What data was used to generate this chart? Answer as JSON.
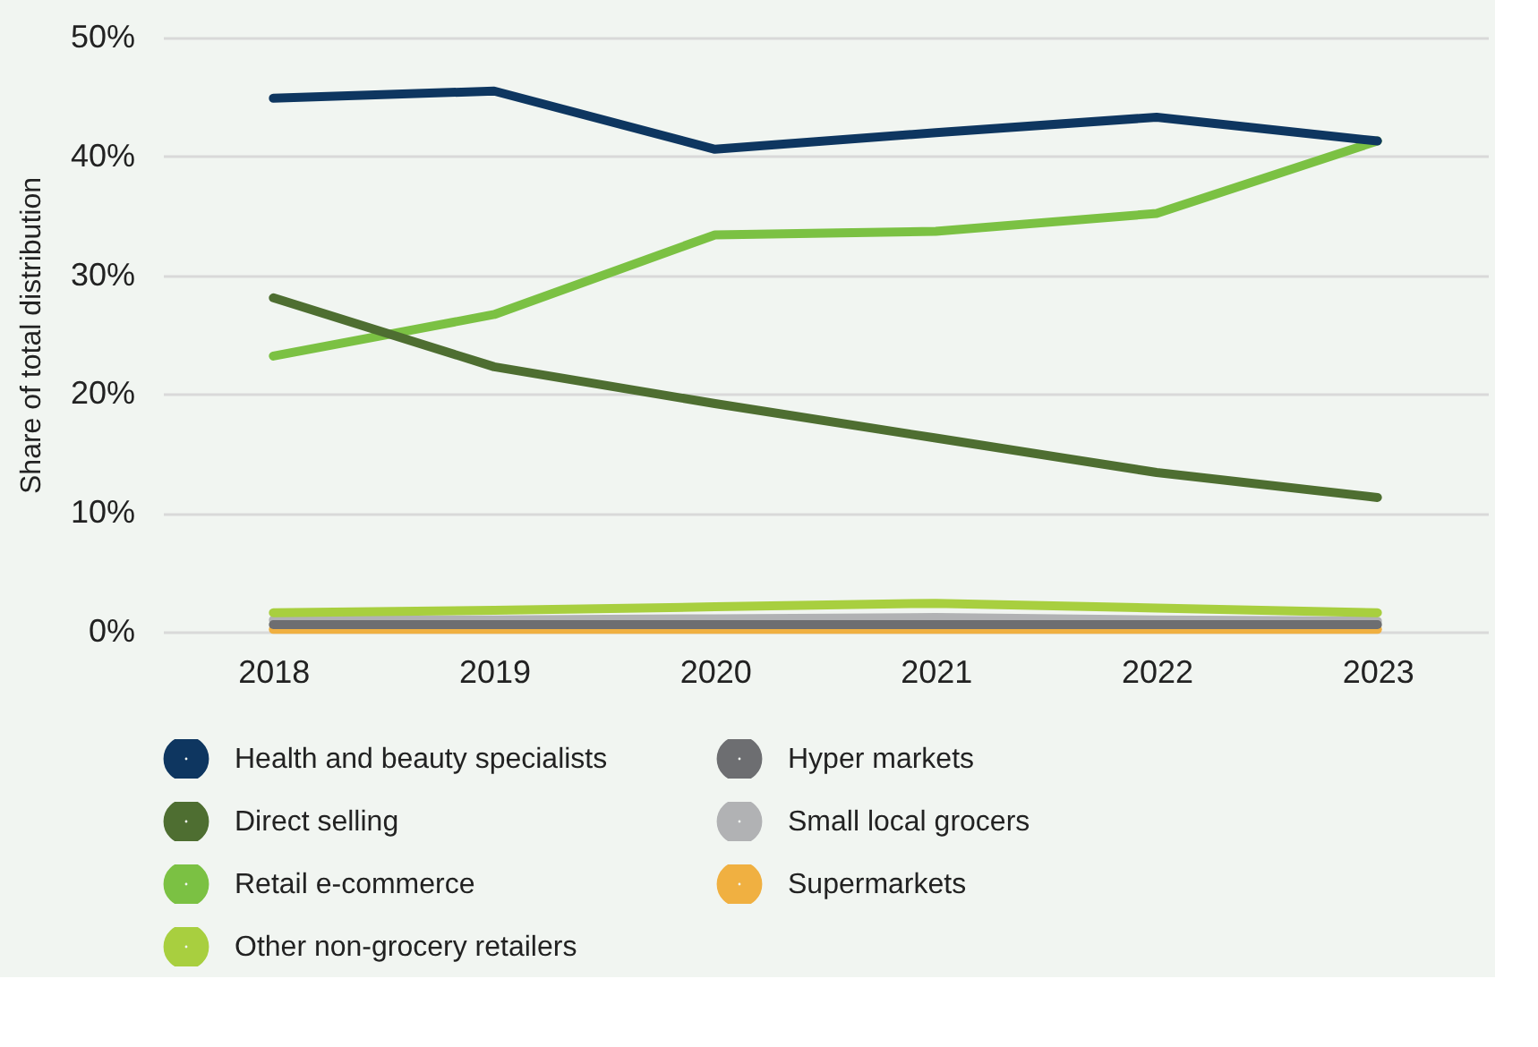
{
  "chart_data": {
    "type": "line",
    "ylabel": "Share of total distribution",
    "categories": [
      "2018",
      "2019",
      "2020",
      "2021",
      "2022",
      "2023"
    ],
    "series": [
      {
        "name": "Health and beauty specialists",
        "color": "#0e3660",
        "values": [
          44.9,
          45.5,
          40.6,
          42.0,
          43.3,
          41.3
        ]
      },
      {
        "name": "Direct selling",
        "color": "#4e6e31",
        "values": [
          28.1,
          22.3,
          19.2,
          16.3,
          13.4,
          11.3
        ]
      },
      {
        "name": "Retail e-commerce",
        "color": "#7bc143",
        "values": [
          23.2,
          26.7,
          33.4,
          33.7,
          35.2,
          41.3
        ]
      },
      {
        "name": "Other non-grocery retailers",
        "color": "#a8cf3f",
        "values": [
          1.6,
          1.8,
          2.1,
          2.4,
          2.0,
          1.6
        ]
      },
      {
        "name": "Hyper markets",
        "color": "#6d6e71",
        "values": [
          0.6,
          0.6,
          0.6,
          0.6,
          0.6,
          0.6
        ]
      },
      {
        "name": "Small local grocers",
        "color": "#b1b2b4",
        "values": [
          1.0,
          1.0,
          1.1,
          1.2,
          1.0,
          0.9
        ]
      },
      {
        "name": "Supermarkets",
        "color": "#f0b041",
        "values": [
          0.2,
          0.2,
          0.2,
          0.2,
          0.2,
          0.2
        ]
      }
    ],
    "ylim": [
      0,
      50
    ],
    "yticks": [
      {
        "value": 0,
        "label": "0%"
      },
      {
        "value": 10,
        "label": "10%"
      },
      {
        "value": 20,
        "label": "20%"
      },
      {
        "value": 30,
        "label": "30%"
      },
      {
        "value": 40,
        "label": "40%"
      },
      {
        "value": 50,
        "label": "50%"
      }
    ],
    "grid": "y",
    "legend": "bottom",
    "marker": "none",
    "line_style": "solid"
  }
}
